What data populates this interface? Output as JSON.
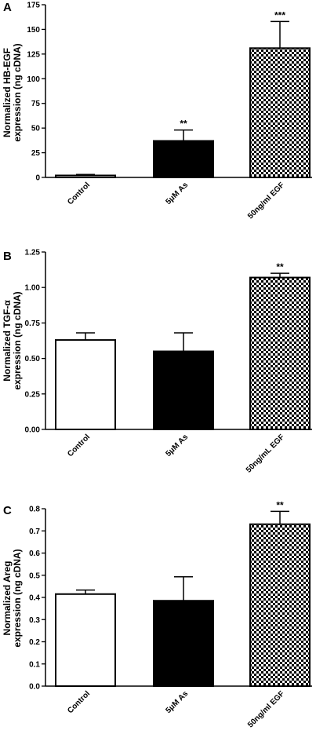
{
  "chart_data": [
    {
      "panel": "A",
      "type": "bar",
      "ylabel_lines": [
        "Normalized HB-EGF",
        "expression (ng cDNA)"
      ],
      "categories": [
        "Control",
        "5μM As",
        "50ng/ml EGF"
      ],
      "values": [
        2,
        37,
        131
      ],
      "errors": [
        1,
        11,
        27
      ],
      "significance": [
        "",
        "**",
        "***"
      ],
      "fills": [
        "white",
        "black",
        "checker"
      ],
      "ylim": [
        0,
        175
      ],
      "yticks": [
        0,
        25,
        50,
        75,
        100,
        125,
        150,
        175
      ],
      "ytick_labels": [
        "0",
        "25",
        "50",
        "75",
        "100",
        "125",
        "150",
        "175"
      ]
    },
    {
      "panel": "B",
      "type": "bar",
      "ylabel_lines": [
        "Normalized TGF-α",
        "expression (ng cDNA)"
      ],
      "categories": [
        "Control",
        "5μM As",
        "50ng/mL EGF"
      ],
      "values": [
        0.63,
        0.55,
        1.07
      ],
      "errors": [
        0.05,
        0.13,
        0.03
      ],
      "significance": [
        "",
        "",
        "**"
      ],
      "fills": [
        "white",
        "black",
        "checker"
      ],
      "ylim": [
        0,
        1.25
      ],
      "yticks": [
        0,
        0.25,
        0.5,
        0.75,
        1.0,
        1.25
      ],
      "ytick_labels": [
        "0.00",
        "0.25",
        "0.50",
        "0.75",
        "1.00",
        "1.25"
      ]
    },
    {
      "panel": "C",
      "type": "bar",
      "ylabel_lines": [
        "Normalized Areg",
        "expression (ng cDNA)"
      ],
      "categories": [
        "Control",
        "5μM As",
        "50ng/ml EGF"
      ],
      "values": [
        0.415,
        0.385,
        0.73
      ],
      "errors": [
        0.018,
        0.108,
        0.058
      ],
      "significance": [
        "",
        "",
        "**"
      ],
      "fills": [
        "white",
        "black",
        "checker"
      ],
      "ylim": [
        0,
        0.8
      ],
      "yticks": [
        0,
        0.1,
        0.2,
        0.3,
        0.4,
        0.5,
        0.6,
        0.7,
        0.8
      ],
      "ytick_labels": [
        "0.0",
        "0.1",
        "0.2",
        "0.3",
        "0.4",
        "0.5",
        "0.6",
        "0.7",
        "0.8"
      ]
    }
  ]
}
